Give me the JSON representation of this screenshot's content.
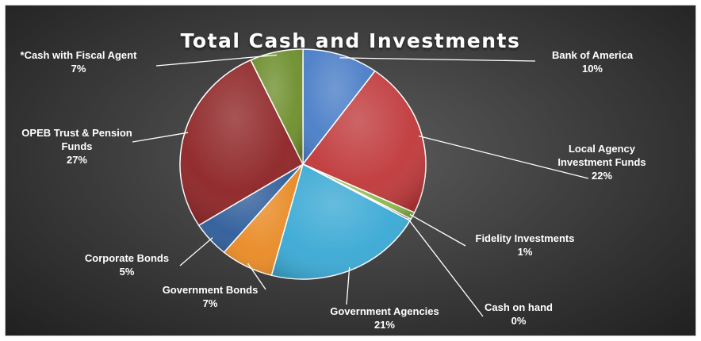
{
  "chart_data": {
    "type": "pie",
    "title": "Total Cash and Investments",
    "slices": [
      {
        "label": "Bank of America",
        "label_lines": [
          "Bank of America"
        ],
        "value": 10,
        "value_text": "10%",
        "color": "#4a7ec7"
      },
      {
        "label": "Local Agency Investment Funds",
        "label_lines": [
          "Local Agency",
          "Investment Funds"
        ],
        "value": 22,
        "value_text": "22%",
        "color": "#c0393b"
      },
      {
        "label": "Fidelity Investments",
        "label_lines": [
          "Fidelity Investments"
        ],
        "value": 1,
        "value_text": "1%",
        "color": "#8cb84a"
      },
      {
        "label": "Cash on hand",
        "label_lines": [
          "Cash on hand"
        ],
        "value": 0,
        "value_text": "0%",
        "color": "#7c5fa8"
      },
      {
        "label": "Government Agencies",
        "label_lines": [
          "Government Agencies"
        ],
        "value": 21,
        "value_text": "21%",
        "color": "#3aa9d4"
      },
      {
        "label": "Government Bonds",
        "label_lines": [
          "Government Bonds"
        ],
        "value": 7,
        "value_text": "7%",
        "color": "#e98a25"
      },
      {
        "label": "Corporate Bonds",
        "label_lines": [
          "Corporate Bonds"
        ],
        "value": 5,
        "value_text": "5%",
        "color": "#2f5d9a"
      },
      {
        "label": "OPEB Trust & Pension Funds",
        "label_lines": [
          "OPEB Trust & Pension",
          "Funds"
        ],
        "value": 27,
        "value_text": "27%",
        "color": "#8e2426"
      },
      {
        "label": "*Cash with Fiscal Agent",
        "label_lines": [
          "*Cash with Fiscal Agent"
        ],
        "value": 7,
        "value_text": "7%",
        "color": "#6e8f2e"
      }
    ],
    "legend": "none",
    "data_labels": "outside with leader lines"
  }
}
